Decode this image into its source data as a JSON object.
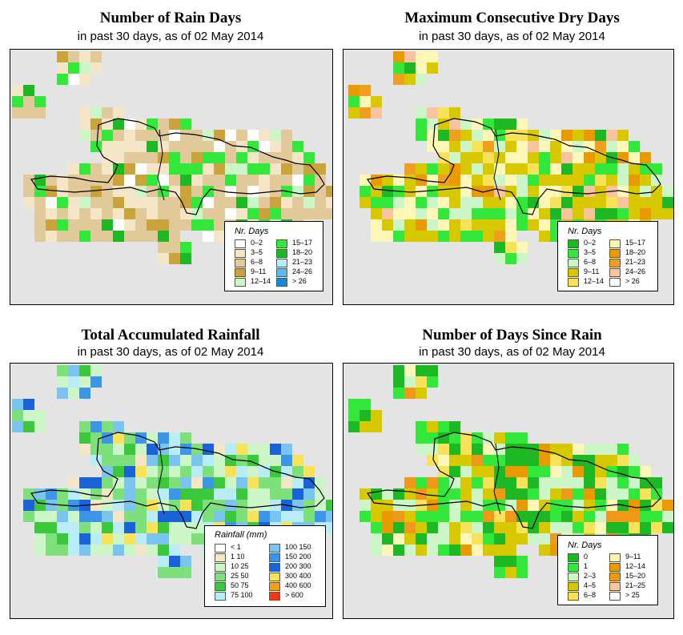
{
  "panels": [
    {
      "title": "Number of Rain Days",
      "subtitle": "in past 30 days, as of  02 May 2014",
      "legend_title": "Nr. Days",
      "legend": [
        {
          "label": "0–2",
          "color": "#ffffff"
        },
        {
          "label": "3–5",
          "color": "#f5e6c8"
        },
        {
          "label": "6–8",
          "color": "#e2c99a"
        },
        {
          "label": "9–11",
          "color": "#c9a33c"
        },
        {
          "label": "12–14",
          "color": "#ccf5c8"
        },
        {
          "label": "15–17",
          "color": "#33e83a"
        },
        {
          "label": "18–20",
          "color": "#1db823"
        },
        {
          "label": "21–23",
          "color": "#b8ecf7"
        },
        {
          "label": "24–26",
          "color": "#5fb6ec"
        },
        {
          "label": "> 26",
          "color": "#1a86d8"
        }
      ]
    },
    {
      "title": "Maximum Consecutive Dry Days",
      "subtitle": "in past 30 days, as of  02 May 2014",
      "legend_title": "Nr. Days",
      "legend": [
        {
          "label": "0–2",
          "color": "#1db823"
        },
        {
          "label": "3–5",
          "color": "#33e83a"
        },
        {
          "label": "6–8",
          "color": "#ccf5c8"
        },
        {
          "label": "9–11",
          "color": "#d8c800"
        },
        {
          "label": "12–14",
          "color": "#f7e25a"
        },
        {
          "label": "15–17",
          "color": "#fff7b8"
        },
        {
          "label": "18–20",
          "color": "#e89a00"
        },
        {
          "label": "21–23",
          "color": "#f0a020"
        },
        {
          "label": "24–26",
          "color": "#f8c4a0"
        },
        {
          "label": "> 26",
          "color": "#ffffff"
        }
      ]
    },
    {
      "title": "Total Accumulated Rainfall",
      "subtitle": "in past 30 days, as of  02 May 2014",
      "legend_title": "Rainfall (mm)",
      "legend": [
        {
          "label": "< 1",
          "color": "#ffffff"
        },
        {
          "label": "1   10",
          "color": "#f5e6c8"
        },
        {
          "label": "10   25",
          "color": "#ccf5c8"
        },
        {
          "label": "25   50",
          "color": "#7ee07a"
        },
        {
          "label": "50   75",
          "color": "#3cc83c"
        },
        {
          "label": "75  100",
          "color": "#b8ecf7"
        },
        {
          "label": "100  150",
          "color": "#7cc4f0"
        },
        {
          "label": "150  200",
          "color": "#3c96e8"
        },
        {
          "label": "200  300",
          "color": "#1a62d8"
        },
        {
          "label": "300  400",
          "color": "#f7e25a"
        },
        {
          "label": "400  600",
          "color": "#f0a020"
        },
        {
          "label": "> 600",
          "color": "#f03c14"
        }
      ]
    },
    {
      "title": "Number of Days Since Rain",
      "subtitle": "in past 30 days, as of  02 May 2014",
      "legend_title": "Nr. Days",
      "legend": [
        {
          "label": "0",
          "color": "#1db823"
        },
        {
          "label": "1",
          "color": "#33e83a"
        },
        {
          "label": "2–3",
          "color": "#ccf5c8"
        },
        {
          "label": "4–5",
          "color": "#d8c800"
        },
        {
          "label": "6–8",
          "color": "#f7e25a"
        },
        {
          "label": "9–11",
          "color": "#fff7b8"
        },
        {
          "label": "12–14",
          "color": "#e89a00"
        },
        {
          "label": "15–20",
          "color": "#f09818"
        },
        {
          "label": "21–25",
          "color": "#f8c4a0"
        },
        {
          "label": "> 25",
          "color": "#ffffff"
        }
      ]
    }
  ]
}
